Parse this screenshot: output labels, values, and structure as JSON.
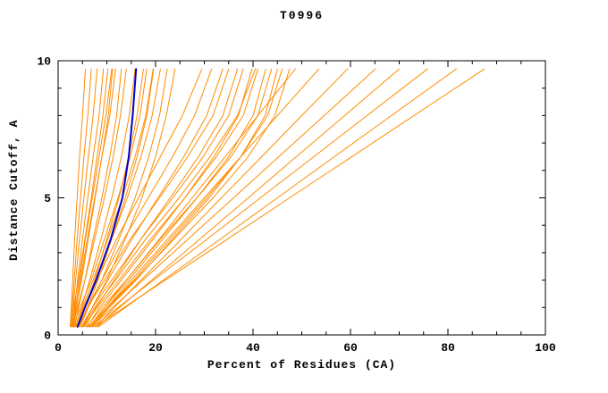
{
  "page": {
    "background": "#ffffff"
  },
  "chart_data": {
    "type": "line",
    "title": "T0996",
    "xlabel": "Percent of Residues (CA)",
    "ylabel": "Distance Cutoff, A",
    "xlim": [
      0,
      100
    ],
    "ylim": [
      0,
      10
    ],
    "x_major_ticks": [
      0,
      20,
      40,
      60,
      80,
      100
    ],
    "x_tick_labels": [
      "0",
      "20",
      "40",
      "60",
      "80",
      "100"
    ],
    "x_minor_step": 5,
    "y_major_ticks": [
      0,
      5,
      10
    ],
    "y_tick_labels": [
      "0",
      "5",
      "10"
    ],
    "y_minor_step": 1,
    "grid": false,
    "frame": "box-with-inward-ticks",
    "colors": {
      "model": "#ff8c00",
      "highlight": "#0000cd",
      "axis": "#000000"
    },
    "y_samples": [
      0.3,
      1,
      2,
      3.5,
      5,
      6.5,
      8,
      9.7
    ],
    "series": [
      {
        "name": "model-01",
        "color": "#ff8c00",
        "x": [
          2.5,
          2.7,
          3.0,
          3.4,
          3.9,
          4.4,
          5.0,
          5.6
        ]
      },
      {
        "name": "model-02",
        "color": "#ff8c00",
        "x": [
          2.6,
          2.9,
          3.3,
          3.9,
          4.6,
          5.3,
          6.1,
          6.8
        ]
      },
      {
        "name": "model-03",
        "color": "#ff8c00",
        "x": [
          2.8,
          3.1,
          3.6,
          4.4,
          5.3,
          6.2,
          7.2,
          8.0
        ]
      },
      {
        "name": "model-04",
        "color": "#ff8c00",
        "x": [
          3.0,
          3.4,
          4.0,
          5.0,
          6.1,
          7.2,
          8.4,
          9.3
        ]
      },
      {
        "name": "model-05",
        "color": "#ff8c00",
        "x": [
          2.7,
          3.2,
          4.2,
          5.5,
          6.8,
          8.0,
          9.2,
          10.2
        ]
      },
      {
        "name": "model-06",
        "color": "#ff8c00",
        "x": [
          3.2,
          3.8,
          4.8,
          6.2,
          7.6,
          9.0,
          10.3,
          11.2
        ]
      },
      {
        "name": "model-07",
        "color": "#ff8c00",
        "x": [
          2.9,
          3.5,
          4.6,
          6.0,
          7.5,
          9.0,
          10.6,
          11.8
        ]
      },
      {
        "name": "model-08",
        "color": "#ff8c00",
        "x": [
          3.4,
          4.2,
          5.5,
          7.2,
          9.0,
          10.6,
          12.0,
          13.0
        ]
      },
      {
        "name": "model-09",
        "color": "#ff8c00",
        "x": [
          3.1,
          3.6,
          4.4,
          5.6,
          7.0,
          8.4,
          9.8,
          11.0
        ]
      },
      {
        "name": "model-10",
        "color": "#ff8c00",
        "x": [
          3.0,
          4.0,
          5.5,
          7.5,
          9.5,
          11.3,
          12.8,
          14.0
        ]
      },
      {
        "name": "model-11",
        "color": "#ff8c00",
        "x": [
          3.6,
          4.8,
          6.5,
          8.8,
          11.0,
          13.0,
          14.6,
          15.8
        ]
      },
      {
        "name": "model-12",
        "color": "#ff8c00",
        "x": [
          4.0,
          5.5,
          7.5,
          10.0,
          12.5,
          14.5,
          16.2,
          17.5
        ]
      },
      {
        "name": "model-13",
        "color": "#ff8c00",
        "x": [
          3.2,
          4.5,
          6.8,
          9.5,
          12.3,
          14.8,
          16.8,
          18.2
        ]
      },
      {
        "name": "model-14",
        "color": "#ff8c00",
        "x": [
          4.5,
          6.0,
          8.2,
          11.0,
          13.8,
          16.2,
          18.2,
          19.6
        ]
      },
      {
        "name": "model-15",
        "color": "#ff8c00",
        "x": [
          3.8,
          5.2,
          7.8,
          11.0,
          14.2,
          17.0,
          19.3,
          21.0
        ]
      },
      {
        "name": "model-16",
        "color": "#ff8c00",
        "x": [
          4.2,
          6.0,
          9.0,
          12.5,
          15.8,
          18.6,
          20.8,
          22.4
        ]
      },
      {
        "name": "model-17",
        "color": "#ff8c00",
        "x": [
          5.0,
          7.0,
          10.0,
          13.8,
          17.2,
          20.0,
          22.2,
          24.0
        ]
      },
      {
        "name": "model-18",
        "color": "#ff8c00",
        "x": [
          3.5,
          5.0,
          7.2,
          10.2,
          13.2,
          15.8,
          18.0,
          19.5
        ]
      },
      {
        "name": "model-19",
        "color": "#ff8c00",
        "x": [
          4.0,
          5.5,
          8.0,
          12.0,
          16.5,
          21.0,
          25.5,
          29.5
        ]
      },
      {
        "name": "model-20",
        "color": "#ff8c00",
        "x": [
          4.5,
          6.2,
          9.0,
          13.5,
          18.5,
          23.5,
          28.0,
          31.5
        ]
      },
      {
        "name": "model-21",
        "color": "#ff8c00",
        "x": [
          5.0,
          7.0,
          10.2,
          15.2,
          20.5,
          25.8,
          30.5,
          33.8
        ]
      },
      {
        "name": "model-22",
        "color": "#ff8c00",
        "x": [
          4.2,
          6.0,
          9.5,
          14.8,
          20.8,
          26.6,
          31.8,
          35.0
        ]
      },
      {
        "name": "model-23",
        "color": "#ff8c00",
        "x": [
          5.5,
          7.8,
          11.5,
          17.0,
          23.0,
          28.8,
          33.8,
          36.8
        ]
      },
      {
        "name": "model-24",
        "color": "#ff8c00",
        "x": [
          4.8,
          7.0,
          11.0,
          17.0,
          23.5,
          29.8,
          35.0,
          38.0
        ]
      },
      {
        "name": "model-25",
        "color": "#ff8c00",
        "x": [
          6.0,
          8.5,
          13.0,
          19.5,
          26.0,
          32.0,
          37.0,
          39.8
        ]
      },
      {
        "name": "model-26",
        "color": "#ff8c00",
        "x": [
          5.2,
          8.0,
          12.5,
          19.0,
          26.0,
          32.5,
          38.0,
          41.0
        ]
      },
      {
        "name": "model-27",
        "color": "#ff8c00",
        "x": [
          6.5,
          9.5,
          14.5,
          21.5,
          28.5,
          35.0,
          40.0,
          42.6
        ]
      },
      {
        "name": "model-28",
        "color": "#ff8c00",
        "x": [
          5.8,
          9.0,
          14.0,
          21.0,
          28.5,
          35.5,
          41.0,
          43.8
        ]
      },
      {
        "name": "model-29",
        "color": "#ff8c00",
        "x": [
          7.0,
          10.5,
          16.0,
          23.5,
          31.0,
          37.5,
          42.5,
          45.0
        ]
      },
      {
        "name": "model-30",
        "color": "#ff8c00",
        "x": [
          6.2,
          10.0,
          15.5,
          23.0,
          30.5,
          37.5,
          43.0,
          46.0
        ]
      },
      {
        "name": "model-31",
        "color": "#ff8c00",
        "x": [
          5.0,
          7.5,
          11.8,
          18.0,
          24.8,
          31.2,
          36.8,
          40.5
        ]
      },
      {
        "name": "model-32",
        "color": "#ff8c00",
        "x": [
          6.8,
          10.2,
          15.8,
          23.8,
          31.8,
          39.0,
          44.5,
          47.5
        ]
      },
      {
        "name": "model-33",
        "color": "#ff8c00",
        "x": [
          6.4,
          9.5,
          14.0,
          20.8,
          27.5,
          34.3,
          41.0,
          48.7
        ]
      },
      {
        "name": "model-34",
        "color": "#ff8c00",
        "x": [
          6.5,
          10.0,
          15.0,
          22.5,
          30.0,
          37.5,
          45.0,
          53.5
        ]
      },
      {
        "name": "model-35",
        "color": "#ff8c00",
        "x": [
          7.7,
          11.5,
          17.0,
          25.3,
          33.5,
          41.8,
          50.0,
          59.4
        ]
      },
      {
        "name": "model-36",
        "color": "#ff8c00",
        "x": [
          6.9,
          11.2,
          17.4,
          26.7,
          36.0,
          45.3,
          54.6,
          65.1
        ]
      },
      {
        "name": "model-37",
        "color": "#ff8c00",
        "x": [
          8.0,
          12.6,
          19.2,
          29.1,
          39.0,
          48.9,
          58.8,
          70.0
        ]
      },
      {
        "name": "model-38",
        "color": "#ff8c00",
        "x": [
          7.2,
          12.3,
          19.6,
          30.6,
          41.5,
          52.5,
          63.4,
          75.8
        ]
      },
      {
        "name": "model-39",
        "color": "#ff8c00",
        "x": [
          8.3,
          13.8,
          21.6,
          33.3,
          45.0,
          56.7,
          68.4,
          81.7
        ]
      },
      {
        "name": "model-40",
        "color": "#ff8c00",
        "x": [
          7.6,
          13.5,
          22.0,
          34.8,
          47.5,
          60.3,
          73.0,
          87.5
        ]
      },
      {
        "name": "highlight-curve",
        "color": "#0000cd",
        "width": 2,
        "x": [
          4.0,
          5.5,
          7.8,
          10.8,
          13.2,
          14.5,
          15.3,
          16.0
        ]
      }
    ]
  }
}
